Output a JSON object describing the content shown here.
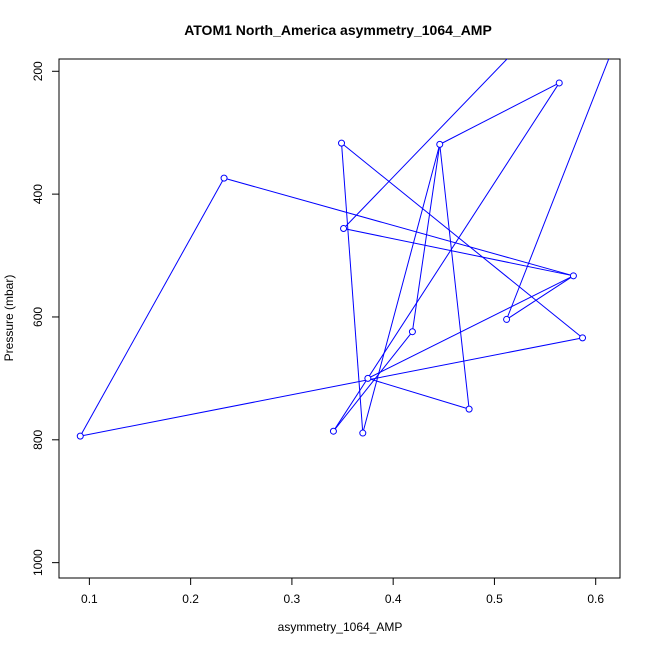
{
  "chart_data": {
    "type": "line",
    "title": "ATOM1 North_America asymmetry_1064_AMP",
    "xlabel": "asymmetry_1064_AMP",
    "ylabel": "Pressure (mbar)",
    "xlim": [
      0.07,
      0.624
    ],
    "ylim": [
      1025,
      180
    ],
    "y_reversed": true,
    "x_ticks": [
      0.1,
      0.2,
      0.3,
      0.4,
      0.5,
      0.6
    ],
    "y_ticks": [
      200,
      400,
      600,
      800,
      1000
    ],
    "x_tick_labels": [
      "0.1",
      "0.2",
      "0.3",
      "0.4",
      "0.5",
      "0.6"
    ],
    "y_tick_labels": [
      "200",
      "400",
      "600",
      "800",
      "1000"
    ],
    "grid": false,
    "series": [
      {
        "color": "#0000ff",
        "marker": "open-circle",
        "points": [
          {
            "x": 0.53,
            "y": 150,
            "marker": false
          },
          {
            "x": 0.351,
            "y": 456
          },
          {
            "x": 0.578,
            "y": 533
          },
          {
            "x": 0.233,
            "y": 374
          },
          {
            "x": 0.091,
            "y": 794
          },
          {
            "x": 0.587,
            "y": 634
          },
          {
            "x": 0.349,
            "y": 317
          },
          {
            "x": 0.37,
            "y": 789
          },
          {
            "x": 0.446,
            "y": 319
          },
          {
            "x": 0.419,
            "y": 624
          },
          {
            "x": 0.341,
            "y": 786
          },
          {
            "x": 0.564,
            "y": 219
          },
          {
            "x": 0.446,
            "y": 319,
            "marker": false,
            "skip": true
          },
          {
            "x": 0.475,
            "y": 750
          },
          {
            "x": 0.375,
            "y": 700
          },
          {
            "x": 0.578,
            "y": 533,
            "marker": false,
            "skip": true
          },
          {
            "x": 0.512,
            "y": 604
          },
          {
            "x": 0.62,
            "y": 150,
            "marker": false
          }
        ]
      }
    ]
  }
}
